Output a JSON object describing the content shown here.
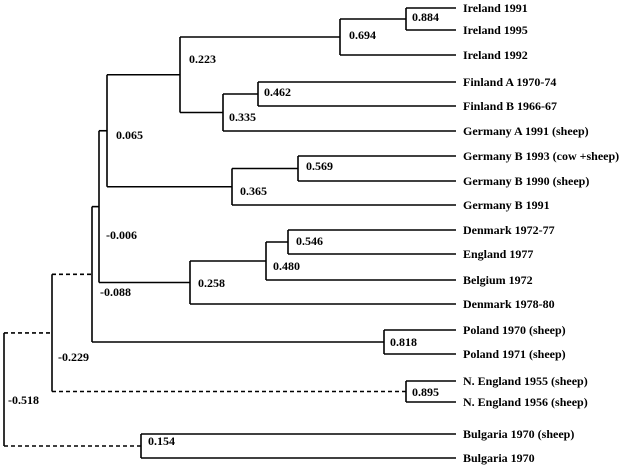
{
  "leaves": [
    {
      "id": "ireland_1991",
      "label": "Ireland 1991"
    },
    {
      "id": "ireland_1995",
      "label": "Ireland 1995"
    },
    {
      "id": "ireland_1992",
      "label": "Ireland 1992"
    },
    {
      "id": "finland_a",
      "label": "Finland A 1970-74"
    },
    {
      "id": "finland_b",
      "label": "Finland B 1966-67"
    },
    {
      "id": "germany_a_1991",
      "label": "Germany A 1991 (sheep)"
    },
    {
      "id": "germany_b_1993",
      "label": "Germany B 1993 (cow +sheep)"
    },
    {
      "id": "germany_b_1990",
      "label": "Germany B 1990 (sheep)"
    },
    {
      "id": "germany_b_1991",
      "label": "Germany B 1991"
    },
    {
      "id": "denmark_1972",
      "label": "Denmark 1972-77"
    },
    {
      "id": "england_1977",
      "label": "England 1977"
    },
    {
      "id": "belgium_1972",
      "label": "Belgium 1972"
    },
    {
      "id": "denmark_1978",
      "label": "Denmark 1978-80"
    },
    {
      "id": "poland_1970",
      "label": "Poland 1970 (sheep)"
    },
    {
      "id": "poland_1971",
      "label": "Poland 1971 (sheep)"
    },
    {
      "id": "n_england_1955",
      "label": "N. England 1955 (sheep)"
    },
    {
      "id": "n_england_1956",
      "label": "N. England 1956 (sheep)"
    },
    {
      "id": "bulgaria_1970_sheep",
      "label": "Bulgaria 1970 (sheep)"
    },
    {
      "id": "bulgaria_1970",
      "label": "Bulgaria 1970"
    }
  ],
  "nodes": [
    {
      "id": "n_0884",
      "value": "0.884",
      "children": [
        "ireland_1991",
        "ireland_1995"
      ]
    },
    {
      "id": "n_0694",
      "value": "0.694",
      "children": [
        "n_0884",
        "ireland_1992"
      ]
    },
    {
      "id": "n_0462",
      "value": "0.462",
      "children": [
        "finland_a",
        "finland_b"
      ]
    },
    {
      "id": "n_0335",
      "value": "0.335",
      "children": [
        "n_0462",
        "germany_a_1991"
      ]
    },
    {
      "id": "n_0223",
      "value": "0.223",
      "children": [
        "n_0694",
        "n_0335"
      ]
    },
    {
      "id": "n_0569",
      "value": "0.569",
      "children": [
        "germany_b_1993",
        "germany_b_1990"
      ]
    },
    {
      "id": "n_0365",
      "value": "0.365",
      "children": [
        "n_0569",
        "germany_b_1991"
      ]
    },
    {
      "id": "n_0065",
      "value": "0.065",
      "children": [
        "n_0223",
        "n_0365"
      ]
    },
    {
      "id": "n_0546",
      "value": "0.546",
      "children": [
        "denmark_1972",
        "england_1977"
      ]
    },
    {
      "id": "n_0480",
      "value": "0.480",
      "children": [
        "n_0546",
        "belgium_1972"
      ]
    },
    {
      "id": "n_0258",
      "value": "0.258",
      "children": [
        "n_0480",
        "denmark_1978"
      ]
    },
    {
      "id": "n_m0006",
      "value": "-0.006",
      "children": [
        "n_0065",
        "n_0258"
      ]
    },
    {
      "id": "n_0818",
      "value": "0.818",
      "children": [
        "poland_1970",
        "poland_1971"
      ]
    },
    {
      "id": "n_m0088",
      "value": "-0.088",
      "children": [
        "n_m0006",
        "n_0818"
      ]
    },
    {
      "id": "n_0895",
      "value": "0.895",
      "children": [
        "n_england_1955",
        "n_england_1956"
      ]
    },
    {
      "id": "n_m0229",
      "value": "-0.229",
      "children": [
        "n_m0088",
        "n_0895"
      ],
      "dashed": true
    },
    {
      "id": "n_0154",
      "value": "0.154",
      "children": [
        "bulgaria_1970_sheep",
        "bulgaria_1970"
      ]
    },
    {
      "id": "n_m0518",
      "value": "-0.518",
      "children": [
        "n_m0229",
        "n_0154"
      ],
      "dashed": true
    }
  ]
}
